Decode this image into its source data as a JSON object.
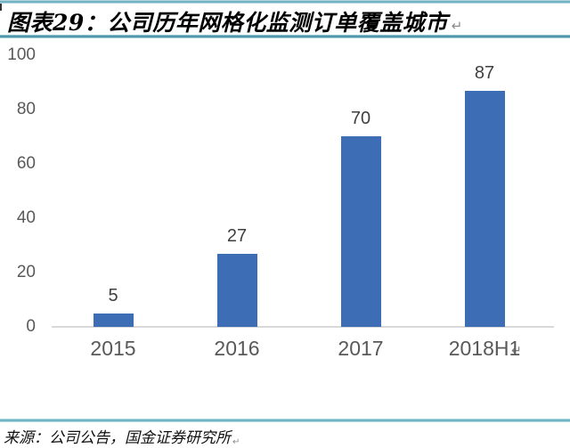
{
  "header": {
    "title": "图表29：公司历年网格化监测订单覆盖城市",
    "return_mark": "↵"
  },
  "chart_data": {
    "type": "bar",
    "title": "公司历年网格化监测订单覆盖城市",
    "categories": [
      "2015",
      "2016",
      "2017",
      "2018H1"
    ],
    "values": [
      5,
      27,
      70,
      87
    ],
    "y_ticks": [
      100,
      80,
      60,
      40,
      20,
      0
    ],
    "ylim": [
      0,
      100
    ],
    "xlabel": "",
    "ylabel": "",
    "grid": "off",
    "legend": "none",
    "bar_color": "#3d6eb5",
    "axis_line_color": "#d9d9d9",
    "axis_text_color": "#595959",
    "data_label_color": "#3f3f3f",
    "chart_return_mark": "↵"
  },
  "footer": {
    "source": "来源：公司公告，国金证券研究所",
    "return_mark": "↵"
  },
  "colors": {
    "rule_teal": "#569fb2",
    "rule_dark_teal": "#2f7e9b"
  }
}
